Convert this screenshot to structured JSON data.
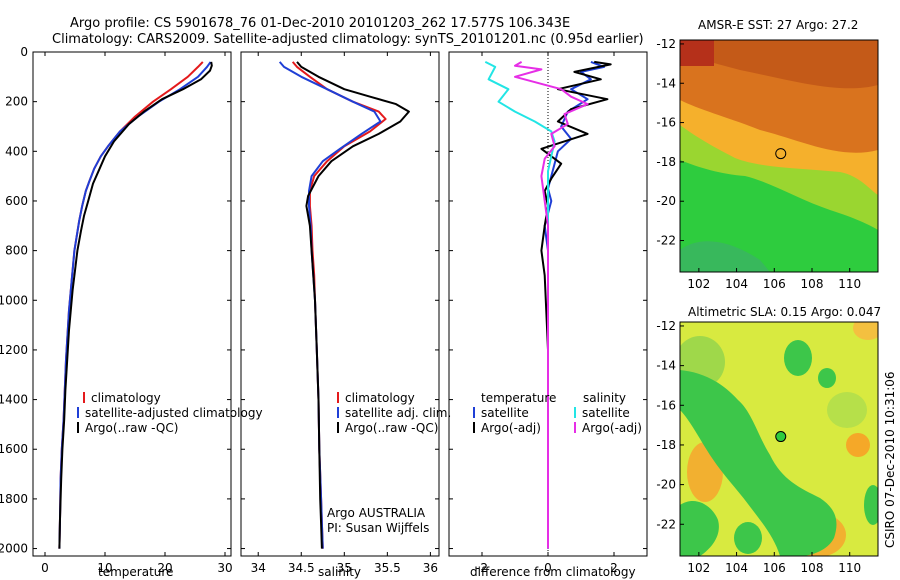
{
  "header": {
    "title_line1": "Argo profile: CS 5901678_76 01-Dec-2010 20101203_262 17.577S 106.343E",
    "title_line2": "Climatology: CARS2009. Satellite-adjusted climatology: synTS_20101201.nc (0.95d earlier)"
  },
  "side_label": "CSIRO 07-Dec-2010 10:31:06",
  "colors": {
    "red": "#e41a1c",
    "blue": "#1f3fd6",
    "black": "#000000",
    "cyan": "#22e5e5",
    "magenta": "#e62ee6"
  },
  "depth_axis": {
    "ticks": [
      0,
      200,
      400,
      600,
      800,
      1000,
      1200,
      1400,
      1600,
      1800,
      2000
    ],
    "range": [
      0,
      2030
    ]
  },
  "chart_data": [
    {
      "type": "line",
      "id": "temperature",
      "xlabel": "temperature",
      "xlim": [
        -2,
        31
      ],
      "xticks": [
        0,
        10,
        20,
        30
      ],
      "series": [
        {
          "name": "climatology",
          "color": "red",
          "x": [
            26.3,
            25.5,
            23.8,
            21,
            18,
            15,
            12.5,
            10.5,
            9.3,
            8.2,
            7.4,
            6.8,
            6.2,
            5.7,
            5.3,
            4.9,
            4.6,
            4.3,
            4,
            3.8,
            3.5,
            3.3,
            3.1,
            2.8,
            2.6,
            2.5,
            2.4
          ],
          "y": [
            40,
            60,
            100,
            150,
            200,
            260,
            320,
            380,
            420,
            470,
            520,
            560,
            620,
            680,
            740,
            800,
            880,
            960,
            1040,
            1120,
            1240,
            1360,
            1480,
            1600,
            1720,
            1880,
            2000
          ]
        },
        {
          "name": "satellite-adjusted climatology",
          "color": "blue",
          "x": [
            27.6,
            27,
            25.5,
            22.5,
            19,
            15.5,
            12.5,
            10.5,
            9.3,
            8.2,
            7.4,
            6.8,
            6.2,
            5.7,
            5.3,
            4.9,
            4.6,
            4.3,
            4,
            3.8,
            3.5,
            3.3,
            3.1,
            2.8,
            2.6,
            2.5,
            2.4
          ],
          "y": [
            40,
            60,
            100,
            150,
            200,
            260,
            320,
            380,
            420,
            470,
            520,
            560,
            620,
            680,
            740,
            800,
            880,
            960,
            1040,
            1120,
            1240,
            1360,
            1480,
            1600,
            1720,
            1880,
            2000
          ]
        },
        {
          "name": "Argo(..raw -QC)",
          "color": "black",
          "x": [
            27.7,
            27.8,
            27.5,
            26,
            23,
            19.5,
            16.5,
            14,
            11.5,
            10,
            9.1,
            8,
            7.2,
            6.5,
            6,
            5.4,
            5,
            4.6,
            4.3,
            4,
            3.7,
            3.4,
            3.2,
            2.9,
            2.7,
            2.5,
            2.4
          ],
          "y": [
            40,
            55,
            75,
            110,
            150,
            190,
            240,
            290,
            360,
            420,
            470,
            530,
            600,
            660,
            720,
            800,
            880,
            960,
            1040,
            1120,
            1240,
            1360,
            1480,
            1600,
            1720,
            1880,
            2000
          ]
        }
      ],
      "legend": [
        "climatology",
        "satellite-adjusted climatology",
        "Argo(..raw -QC)"
      ]
    },
    {
      "type": "line",
      "id": "salinity",
      "xlabel": "salinity",
      "xlim": [
        33.8,
        36.1
      ],
      "xticks": [
        34,
        34.5,
        35,
        35.5,
        36
      ],
      "series": [
        {
          "name": "climatology",
          "color": "red",
          "x": [
            34.4,
            34.45,
            34.6,
            34.8,
            35.1,
            35.4,
            35.48,
            35.3,
            35.0,
            34.8,
            34.65,
            34.6,
            34.6,
            34.62,
            34.63,
            34.65,
            34.66,
            34.68,
            34.7,
            34.71,
            34.72,
            34.73,
            34.74,
            34.75
          ],
          "y": [
            40,
            60,
            100,
            150,
            200,
            240,
            270,
            320,
            380,
            440,
            500,
            560,
            620,
            700,
            800,
            900,
            1000,
            1200,
            1400,
            1600,
            1700,
            1800,
            1900,
            2000
          ]
        },
        {
          "name": "satellite adj. clim.",
          "color": "blue",
          "x": [
            34.25,
            34.3,
            34.5,
            34.8,
            35.1,
            35.35,
            35.42,
            35.2,
            34.95,
            34.75,
            34.62,
            34.59,
            34.59,
            34.61,
            34.62,
            34.64,
            34.66,
            34.68,
            34.7,
            34.71,
            34.72,
            34.73,
            34.74,
            34.75
          ],
          "y": [
            40,
            60,
            100,
            150,
            200,
            240,
            280,
            330,
            390,
            440,
            500,
            560,
            620,
            700,
            800,
            900,
            1000,
            1200,
            1400,
            1600,
            1700,
            1800,
            1900,
            2000
          ]
        },
        {
          "name": "Argo(..raw -QC)",
          "color": "black",
          "x": [
            34.45,
            34.5,
            34.7,
            35.0,
            35.3,
            35.6,
            35.75,
            35.65,
            35.4,
            35.1,
            34.85,
            34.7,
            34.58,
            34.56,
            34.6,
            34.62,
            34.64,
            34.66,
            34.68,
            34.7,
            34.71,
            34.72,
            34.73,
            34.74
          ],
          "y": [
            40,
            60,
            100,
            150,
            180,
            210,
            240,
            280,
            330,
            380,
            440,
            500,
            580,
            620,
            700,
            800,
            900,
            1000,
            1200,
            1400,
            1600,
            1800,
            1900,
            2000
          ]
        }
      ],
      "legend": [
        "climatology",
        "satellite adj. clim.",
        "Argo(..raw -QC)"
      ],
      "annotation": [
        "Argo AUSTRALIA",
        "PI: Susan Wijffels"
      ]
    },
    {
      "type": "line",
      "id": "difference",
      "xlabel": "difference from climatology",
      "xlim": [
        -3,
        3
      ],
      "xticks": [
        -2,
        0,
        2
      ],
      "series": [
        {
          "name": "temperature satellite",
          "color": "blue",
          "x": [
            1.3,
            1.7,
            1.0,
            1.3,
            0.7,
            1.2,
            0.6,
            0.4,
            0.7,
            0.3,
            0.2,
            0.1,
            0.0,
            0.1,
            -0.1,
            0.0,
            0.0,
            0.0,
            0.0,
            0.0
          ],
          "y": [
            40,
            60,
            80,
            110,
            150,
            190,
            240,
            300,
            350,
            400,
            450,
            500,
            550,
            600,
            700,
            800,
            1000,
            1400,
            1800,
            2000
          ]
        },
        {
          "name": "temperature Argo(-adj)",
          "color": "black",
          "x": [
            1.4,
            1.9,
            0.8,
            1.6,
            0.3,
            1.8,
            0.7,
            0.3,
            1.2,
            -0.2,
            0.4,
            0.1,
            -0.1,
            0.0,
            -0.1,
            -0.2,
            -0.1,
            0.0,
            0.0,
            0.0
          ],
          "y": [
            40,
            50,
            80,
            110,
            150,
            190,
            230,
            280,
            330,
            390,
            450,
            510,
            560,
            620,
            700,
            800,
            900,
            1200,
            1600,
            2000
          ]
        },
        {
          "name": "salinity satellite",
          "color": "cyan",
          "x": [
            -1.9,
            -1.6,
            -1.8,
            -1.2,
            -1.5,
            -1.0,
            -0.4,
            0.1,
            0.2,
            0.1,
            0.0,
            0.0,
            0.0,
            0.0,
            0.0
          ],
          "y": [
            40,
            60,
            110,
            150,
            200,
            240,
            280,
            320,
            360,
            420,
            480,
            560,
            700,
            1200,
            2000
          ]
        },
        {
          "name": "salinity Argo(-adj)",
          "color": "magenta",
          "x": [
            -0.8,
            -1.0,
            -0.2,
            -1.0,
            0.4,
            0.7,
            1.2,
            0.5,
            0.6,
            0.1,
            0.2,
            -0.1,
            -0.2,
            -0.1,
            0.0,
            0.0,
            0.0
          ],
          "y": [
            40,
            55,
            70,
            100,
            150,
            180,
            210,
            250,
            290,
            330,
            380,
            430,
            500,
            600,
            700,
            1200,
            2000
          ]
        }
      ],
      "legend_left_title": "temperature",
      "legend_right_title": "salinity",
      "legend_left": [
        "satellite",
        "Argo(-adj)"
      ],
      "legend_right": [
        "satellite",
        "Argo(-adj)"
      ]
    },
    {
      "type": "heatmap",
      "id": "sst_map",
      "title": "AMSR-E SST: 27 Argo: 27.2",
      "xlim": [
        101,
        111.5
      ],
      "ylim": [
        -23.6,
        -11.8
      ],
      "xticks": [
        102,
        104,
        106,
        108,
        110
      ],
      "yticks": [
        -12,
        -14,
        -16,
        -18,
        -20,
        -22
      ],
      "argo_position": [
        106.343,
        -17.577
      ]
    },
    {
      "type": "heatmap",
      "id": "sla_map",
      "title": "Altimetric SLA: 0.15 Argo: 0.047",
      "xlim": [
        101,
        111.5
      ],
      "ylim": [
        -23.6,
        -11.8
      ],
      "xticks": [
        102,
        104,
        106,
        108,
        110
      ],
      "yticks": [
        -12,
        -14,
        -16,
        -18,
        -20,
        -22
      ],
      "argo_position": [
        106.343,
        -17.577
      ]
    }
  ]
}
